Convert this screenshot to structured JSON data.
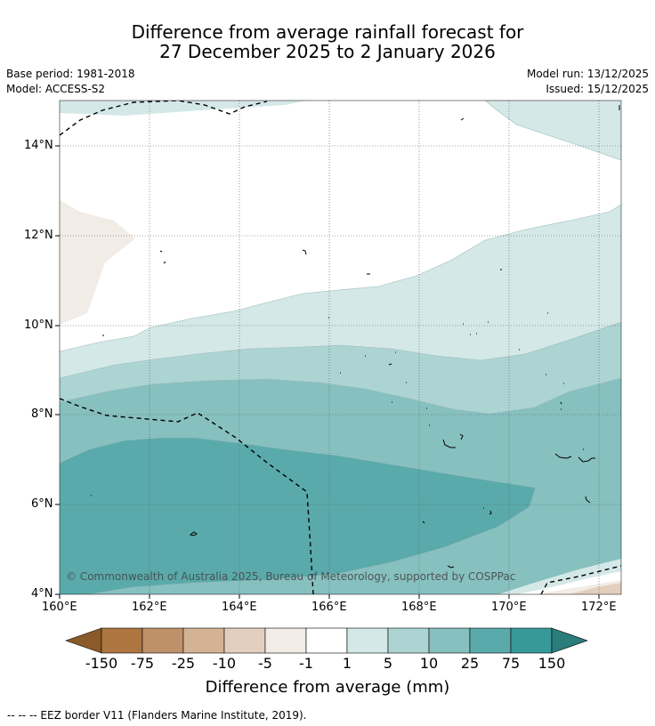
{
  "title": {
    "line1": "Difference from average rainfall forecast for",
    "line2": "27 December 2025 to 2 January 2026"
  },
  "meta": {
    "base_period": "Base period: 1981-2018",
    "model": "Model: ACCESS-S2",
    "model_run": "Model run: 13/12/2025",
    "issued": "Issued: 15/12/2025"
  },
  "map": {
    "lat_labels": [
      "14°N",
      "12°N",
      "10°N",
      "8°N",
      "6°N",
      "4°N"
    ],
    "lon_labels": [
      "160°E",
      "162°E",
      "164°E",
      "166°E",
      "168°E",
      "170°E",
      "172°E"
    ],
    "copyright": "© Commonwealth of Australia 2025, Bureau of Meteorology, supported by COSPPac"
  },
  "colorbar": {
    "labels": [
      "-150",
      "-75",
      "-25",
      "-10",
      "-5",
      "-1",
      "1",
      "5",
      "10",
      "25",
      "75",
      "150"
    ],
    "colors": [
      "#8a5a2b",
      "#ad7540",
      "#bf916a",
      "#d4b294",
      "#e3cfbd",
      "#f2ece6",
      "#ffffff",
      "#d4e8e7",
      "#acd4d3",
      "#86c0bf",
      "#5aaaab",
      "#37999a",
      "#2b7c7c"
    ],
    "title": "Difference from average (mm)"
  },
  "footnote": "--  --  -- EEZ border V11 (Flanders Marine Institute, 2019)."
}
